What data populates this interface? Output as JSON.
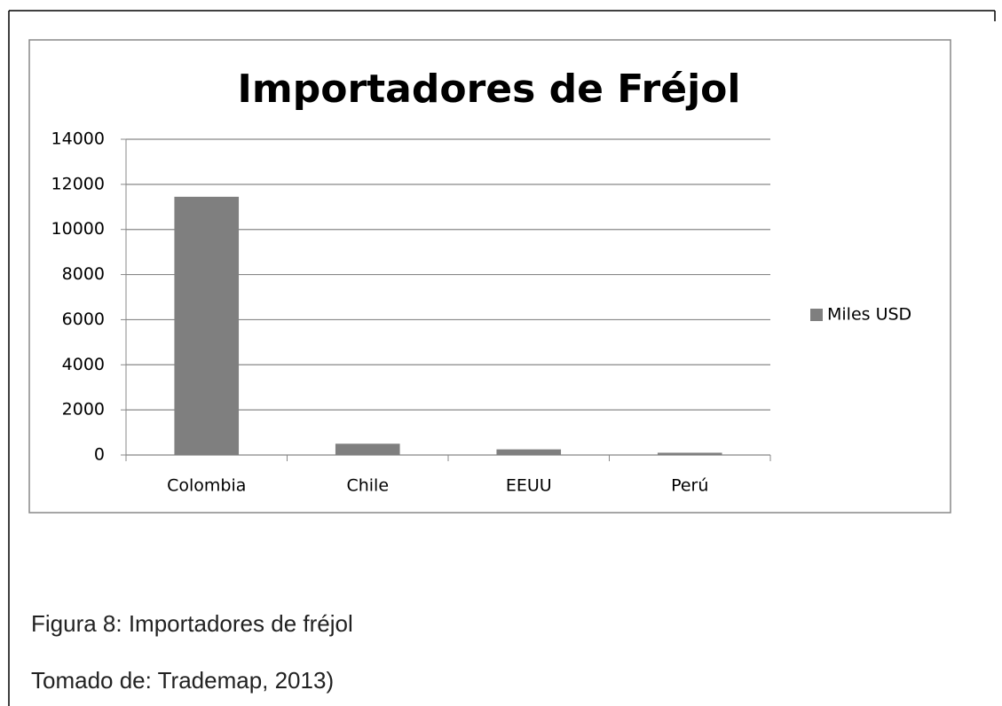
{
  "chart_data": {
    "type": "bar",
    "title": "Importadores de Fréjol",
    "categories": [
      "Colombia",
      "Chile",
      "EEUU",
      "Perú"
    ],
    "series": [
      {
        "name": "Miles USD",
        "color": "#7f7f7f",
        "values": [
          11450,
          500,
          250,
          100
        ]
      }
    ],
    "ylim": [
      0,
      14000
    ],
    "yticks": [
      0,
      2000,
      4000,
      6000,
      8000,
      10000,
      12000,
      14000
    ],
    "grid": true,
    "legend": "right"
  },
  "caption": {
    "figure": "Figura 8: Importadores de fréjol",
    "source": "Tomado de: Trademap, 2013)"
  }
}
